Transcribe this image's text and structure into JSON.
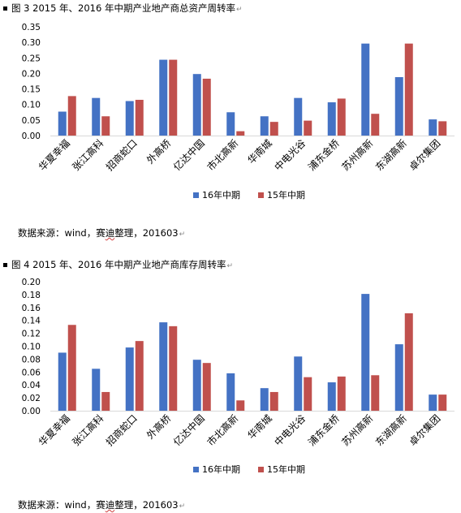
{
  "figures": [
    {
      "title": "图 3 2015 年、2016 年中期产业地产商总资产周转率",
      "source_prefix": "数据来源：wind，赛",
      "source_wavy": "迪",
      "source_suffix": "整理，201603",
      "chart_data": {
        "type": "bar",
        "categories": [
          "华夏幸福",
          "张江高科",
          "招商蛇口",
          "外高桥",
          "亿达中国",
          "市北高新",
          "华南城",
          "中电光谷",
          "浦东金桥",
          "苏州高新",
          "东湖高新",
          "卓尔集团"
        ],
        "series": [
          {
            "name": "16年中期",
            "color": "#4472c4",
            "values": [
              0.077,
              0.121,
              0.111,
              0.244,
              0.198,
              0.075,
              0.062,
              0.121,
              0.107,
              0.296,
              0.188,
              0.052
            ]
          },
          {
            "name": "15年中期",
            "color": "#c0504d",
            "values": [
              0.127,
              0.062,
              0.115,
              0.244,
              0.183,
              0.014,
              0.044,
              0.048,
              0.119,
              0.07,
              0.296,
              0.046
            ]
          }
        ],
        "y_ticks": [
          "0.00",
          "0.05",
          "0.10",
          "0.15",
          "0.20",
          "0.25",
          "0.30",
          "0.35"
        ],
        "ylim": [
          0,
          0.35
        ],
        "grid": false,
        "legend_position": "bottom"
      }
    },
    {
      "title": "图 4 2015 年、2016 年中期产业地产商库存周转率",
      "source_prefix": "数据来源：wind，赛",
      "source_wavy": "迪",
      "source_suffix": "整理，201603",
      "chart_data": {
        "type": "bar",
        "categories": [
          "华夏幸福",
          "张江高科",
          "招商蛇口",
          "外高桥",
          "亿达中国",
          "市北高新",
          "华南城",
          "中电光谷",
          "浦东金桥",
          "苏州高新",
          "东湖高新",
          "卓尔集团"
        ],
        "series": [
          {
            "name": "16年中期",
            "color": "#4472c4",
            "values": [
              0.09,
              0.065,
              0.098,
              0.137,
              0.079,
              0.058,
              0.035,
              0.084,
              0.044,
              0.181,
              0.103,
              0.025
            ]
          },
          {
            "name": "15年中期",
            "color": "#c0504d",
            "values": [
              0.133,
              0.029,
              0.108,
              0.131,
              0.074,
              0.016,
              0.029,
              0.052,
              0.053,
              0.055,
              0.151,
              0.025
            ]
          }
        ],
        "y_ticks": [
          "0.00",
          "0.02",
          "0.04",
          "0.06",
          "0.08",
          "0.10",
          "0.12",
          "0.14",
          "0.16",
          "0.18",
          "0.20"
        ],
        "ylim": [
          0,
          0.2
        ],
        "grid": false,
        "legend_position": "bottom"
      }
    }
  ]
}
